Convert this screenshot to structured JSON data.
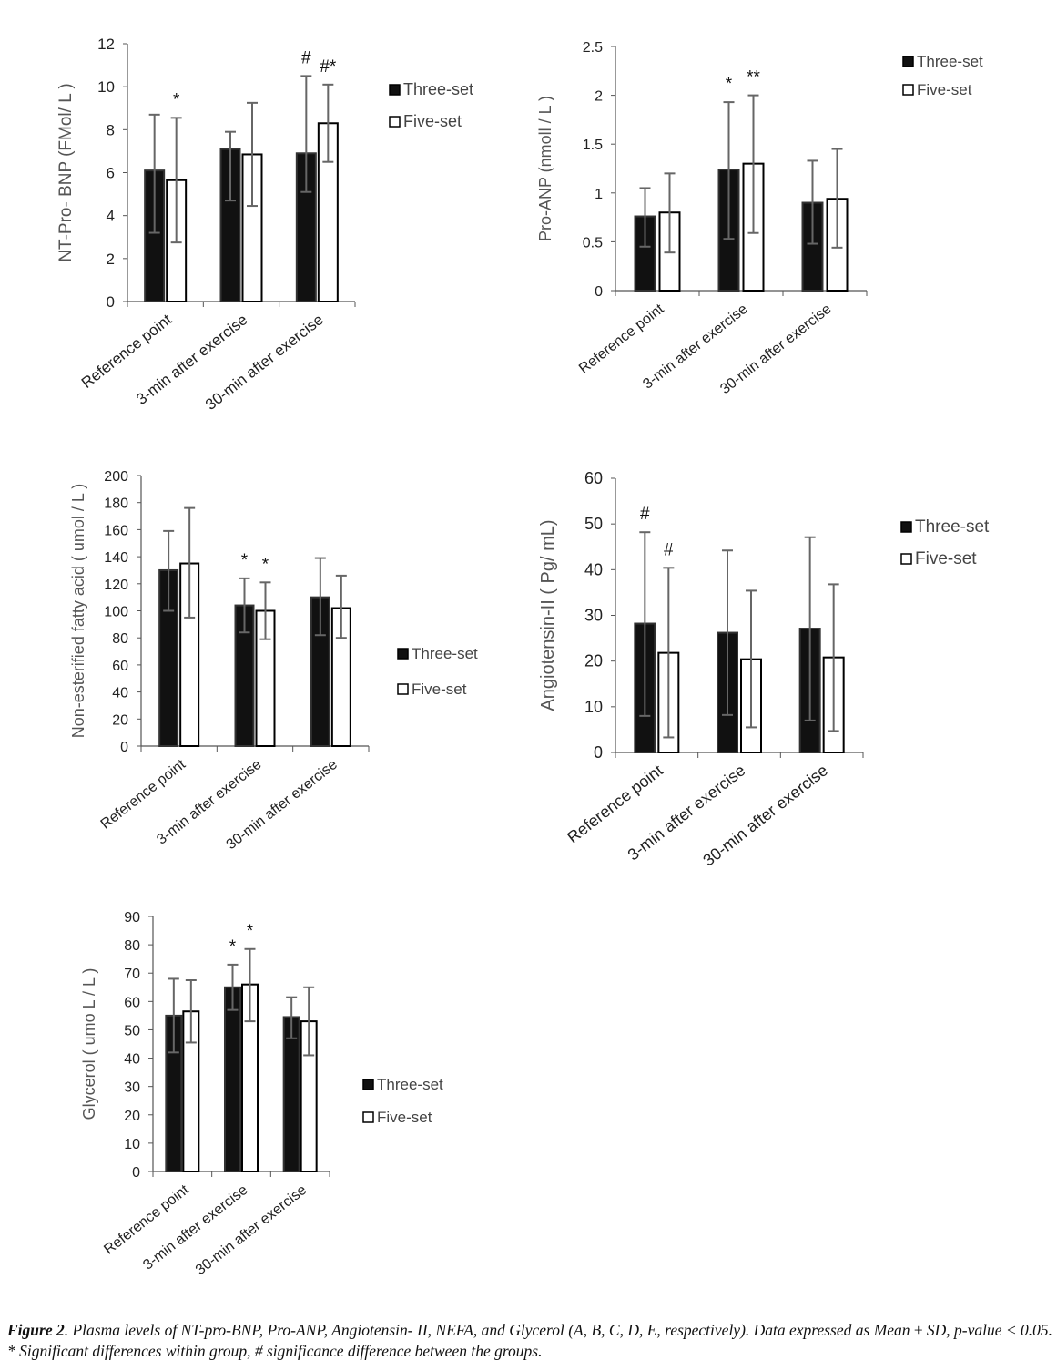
{
  "legend": {
    "three": "Three-set",
    "five": "Five-set"
  },
  "categories": [
    "Reference point",
    "3-min after exercise",
    "30-min after exercise"
  ],
  "caption": {
    "label": "Figure 2",
    "text": ". Plasma levels of NT-pro-BNP, Pro-ANP, Angiotensin- II, NEFA, and Glycerol (A, B, C, D, E, respectively). Data expressed as Mean ± SD, p-value < 0.05. * Significant differences within group, # significance difference between the groups."
  },
  "chart_data": [
    {
      "id": "A",
      "type": "bar",
      "title": "",
      "ylabel": "NT-Pro- BNP (FMol/ L )",
      "xlabel": "",
      "ylim": [
        0,
        12
      ],
      "yticks": [
        0,
        2,
        4,
        6,
        8,
        10,
        12
      ],
      "yticklabels": [
        "0",
        "2",
        "4",
        "6",
        "8",
        "10",
        "12"
      ],
      "categories": [
        "Reference point",
        "3-min after exercise",
        "30-min after exercise"
      ],
      "legend_position": "right",
      "series": [
        {
          "name": "Three-set",
          "values": [
            6.1,
            7.1,
            6.9
          ],
          "err_low": [
            3.2,
            4.7,
            5.1
          ],
          "err_high": [
            8.7,
            7.9,
            10.5
          ],
          "annotations": [
            "",
            "",
            "#"
          ]
        },
        {
          "name": "Five-set",
          "values": [
            5.65,
            6.85,
            8.3
          ],
          "err_low": [
            2.75,
            4.45,
            6.5
          ],
          "err_high": [
            8.55,
            9.25,
            10.1
          ],
          "annotations": [
            "*",
            "",
            "#*"
          ]
        }
      ]
    },
    {
      "id": "B",
      "type": "bar",
      "title": "",
      "ylabel": "Pro-ANP (nmoll / L )",
      "xlabel": "",
      "ylim": [
        0,
        2.5
      ],
      "yticks": [
        0,
        0.5,
        1,
        1.5,
        2,
        2.5
      ],
      "yticklabels": [
        "0",
        "0.5",
        "1",
        "1.5",
        "2",
        "2.5"
      ],
      "categories": [
        "Reference point",
        "3-min after exercise",
        "30-min after exercise"
      ],
      "legend_position": "top-right",
      "series": [
        {
          "name": "Three-set",
          "values": [
            0.76,
            1.24,
            0.9
          ],
          "err_low": [
            0.45,
            0.53,
            0.48
          ],
          "err_high": [
            1.05,
            1.93,
            1.33
          ],
          "annotations": [
            "",
            "*",
            ""
          ]
        },
        {
          "name": "Five-set",
          "values": [
            0.8,
            1.3,
            0.94
          ],
          "err_low": [
            0.39,
            0.59,
            0.44
          ],
          "err_high": [
            1.2,
            2.0,
            1.45
          ],
          "annotations": [
            "",
            "**",
            ""
          ]
        }
      ]
    },
    {
      "id": "C",
      "type": "bar",
      "title": "",
      "ylabel": "Non-esterified fatty acid ( umol / L )",
      "xlabel": "",
      "ylim": [
        0,
        200
      ],
      "yticks": [
        0,
        20,
        40,
        60,
        80,
        100,
        120,
        140,
        160,
        180,
        200
      ],
      "yticklabels": [
        "0",
        "20",
        "40",
        "60",
        "80",
        "100",
        "120",
        "140",
        "160",
        "180",
        "200"
      ],
      "categories": [
        "Reference point",
        "3-min after exercise",
        "30-min after exercise"
      ],
      "legend_position": "right",
      "series": [
        {
          "name": "Three-set",
          "values": [
            130,
            104,
            110
          ],
          "err_low": [
            100,
            84,
            82
          ],
          "err_high": [
            159,
            124,
            139
          ],
          "annotations": [
            "",
            "*",
            ""
          ]
        },
        {
          "name": "Five-set",
          "values": [
            135,
            100,
            102
          ],
          "err_low": [
            95,
            79,
            80
          ],
          "err_high": [
            176,
            121,
            126
          ],
          "annotations": [
            "",
            "*",
            ""
          ]
        }
      ]
    },
    {
      "id": "D",
      "type": "bar",
      "title": "",
      "ylabel": "Angiotensin-II ( Pg/ mL)",
      "xlabel": "",
      "ylim": [
        0,
        60
      ],
      "yticks": [
        0,
        10,
        20,
        30,
        40,
        50,
        60
      ],
      "yticklabels": [
        "0",
        "10",
        "20",
        "30",
        "40",
        "50",
        "60"
      ],
      "categories": [
        "Reference point",
        "3-min after exercise",
        "30-min after exercise"
      ],
      "legend_position": "right",
      "series": [
        {
          "name": "Three-set",
          "values": [
            28.2,
            26.2,
            27.1
          ],
          "err_low": [
            8,
            8.2,
            7
          ],
          "err_high": [
            48.2,
            44.2,
            47.1
          ],
          "annotations": [
            "#",
            "",
            ""
          ]
        },
        {
          "name": "Five-set",
          "values": [
            21.8,
            20.4,
            20.8
          ],
          "err_low": [
            3.3,
            5.5,
            4.7
          ],
          "err_high": [
            40.4,
            35.4,
            36.8
          ],
          "annotations": [
            "#",
            "",
            ""
          ]
        }
      ]
    },
    {
      "id": "E",
      "type": "bar",
      "title": "",
      "ylabel": "Glycerol ( umo L / L )",
      "xlabel": "",
      "ylim": [
        0,
        90
      ],
      "yticks": [
        0,
        10,
        20,
        30,
        40,
        50,
        60,
        70,
        80,
        90
      ],
      "yticklabels": [
        "0",
        "10",
        "20",
        "30",
        "40",
        "50",
        "60",
        "70",
        "80",
        "90"
      ],
      "categories": [
        "Reference point",
        "3-min after exercise",
        "30-min after exercise"
      ],
      "legend_position": "right",
      "series": [
        {
          "name": "Three-set",
          "values": [
            55,
            65,
            54.5
          ],
          "err_low": [
            42,
            57,
            47
          ],
          "err_high": [
            68,
            73,
            61.5
          ],
          "annotations": [
            "",
            "*",
            ""
          ]
        },
        {
          "name": "Five-set",
          "values": [
            56.5,
            66,
            53
          ],
          "err_low": [
            45.5,
            53,
            41
          ],
          "err_high": [
            67.5,
            78.5,
            65
          ],
          "annotations": [
            "",
            "*",
            ""
          ]
        }
      ]
    }
  ]
}
